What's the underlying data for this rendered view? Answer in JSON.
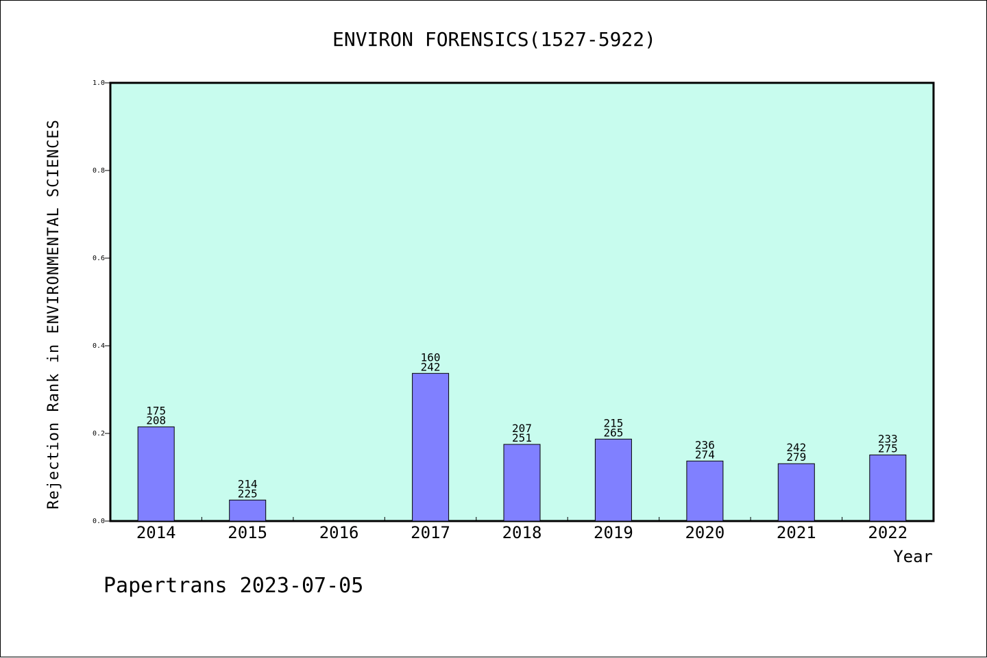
{
  "chart_data": {
    "type": "bar",
    "title": "ENVIRON FORENSICS(1527-5922)",
    "xlabel": "Year",
    "ylabel": "Rejection Rank in ENVIRONMENTAL SCIENCES",
    "ylim": [
      0.0,
      1.0
    ],
    "yticks": [
      "0.0",
      "0.2",
      "0.4",
      "0.6",
      "0.8",
      "1.0"
    ],
    "categories": [
      "2014",
      "2015",
      "2016",
      "2017",
      "2018",
      "2019",
      "2020",
      "2021",
      "2022"
    ],
    "values": [
      0.215,
      0.048,
      null,
      0.337,
      0.175,
      0.187,
      0.137,
      0.131,
      0.151
    ],
    "labels_top": [
      "175",
      "214",
      "",
      "160",
      "207",
      "215",
      "236",
      "242",
      "233"
    ],
    "labels_bottom": [
      "208",
      "225",
      "",
      "242",
      "251",
      "265",
      "274",
      "279",
      "275"
    ],
    "grid": false,
    "colors": {
      "plot_background": "#c8fcee",
      "bar_fill": "#8080ff",
      "bar_stroke": "#000000"
    }
  },
  "footer": "Papertrans 2023-07-05"
}
